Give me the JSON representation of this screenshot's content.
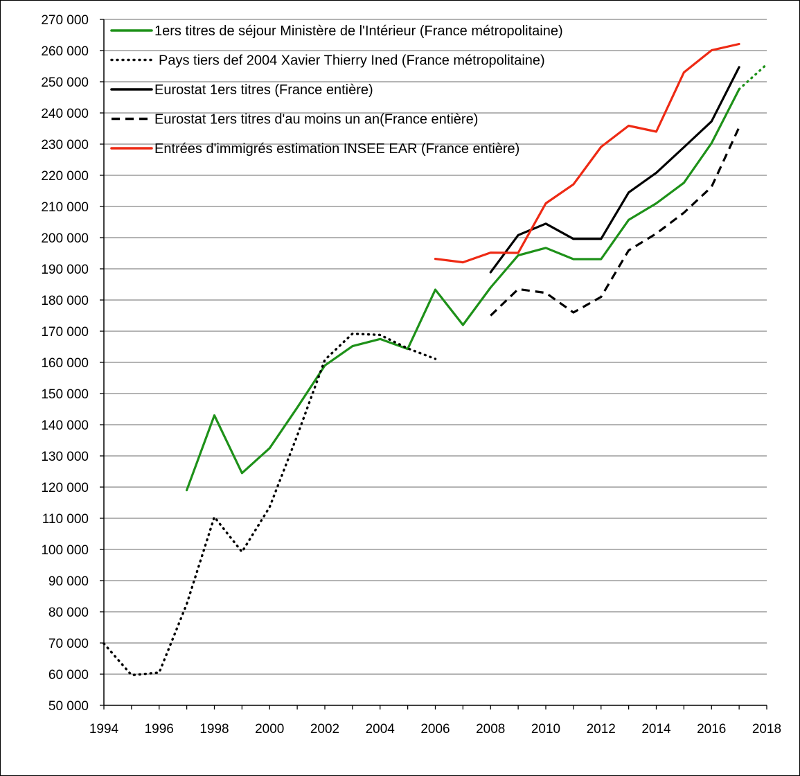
{
  "chart_data": {
    "type": "line",
    "title": "",
    "xlabel": "",
    "ylabel": "",
    "xlim": [
      1994,
      2018
    ],
    "ylim": [
      50000,
      270000
    ],
    "x_ticks": [
      1994,
      1996,
      1998,
      2000,
      2002,
      2004,
      2006,
      2008,
      2010,
      2012,
      2014,
      2016,
      2018
    ],
    "x_tick_labels": [
      "1994",
      "1996",
      "1998",
      "2000",
      "2002",
      "2004",
      "2006",
      "2008",
      "2010",
      "2012",
      "2014",
      "2016",
      "2018"
    ],
    "y_ticks": [
      50000,
      60000,
      70000,
      80000,
      90000,
      100000,
      110000,
      120000,
      130000,
      140000,
      150000,
      160000,
      170000,
      180000,
      190000,
      200000,
      210000,
      220000,
      230000,
      240000,
      250000,
      260000,
      270000
    ],
    "y_tick_labels": [
      "50 000",
      "60 000",
      "70 000",
      "80 000",
      "90 000",
      "100 000",
      "110 000",
      "120 000",
      "130 000",
      "140 000",
      "150 000",
      "160 000",
      "170 000",
      "180 000",
      "190 000",
      "200 000",
      "210 000",
      "220 000",
      "230 000",
      "240 000",
      "250 000",
      "260 000",
      "270 000"
    ],
    "grid": "horizontal",
    "legend_position": "top-left",
    "series": [
      {
        "name": "1ers titres de séjour Ministère  de l'Intérieur (France métropolitaine)",
        "color": "#1e9119",
        "style": "solid",
        "points": [
          [
            1997,
            119000
          ],
          [
            1998,
            143000
          ],
          [
            1999,
            124500
          ],
          [
            2000,
            132500
          ],
          [
            2001,
            145500
          ],
          [
            2002,
            159000
          ],
          [
            2003,
            165200
          ],
          [
            2004,
            167500
          ],
          [
            2005,
            164300
          ],
          [
            2006,
            183300
          ],
          [
            2007,
            172000
          ],
          [
            2008,
            184000
          ],
          [
            2009,
            194300
          ],
          [
            2010,
            196700
          ],
          [
            2011,
            193100
          ],
          [
            2012,
            193100
          ],
          [
            2013,
            205700
          ],
          [
            2014,
            211000
          ],
          [
            2015,
            217600
          ],
          [
            2016,
            230300
          ],
          [
            2017,
            247600
          ]
        ],
        "extension": {
          "style": "dotted",
          "points": [
            [
              2017,
              247600
            ],
            [
              2018,
              255600
            ]
          ]
        }
      },
      {
        "name": "Pays tiers def 2004 Xavier Thierry  Ined (France métropolitaine)",
        "color": "#000000",
        "style": "dotted",
        "points": [
          [
            1994,
            69800
          ],
          [
            1995,
            59700
          ],
          [
            1996,
            60500
          ],
          [
            1997,
            82500
          ],
          [
            1998,
            110400
          ],
          [
            1999,
            99200
          ],
          [
            2000,
            113600
          ],
          [
            2001,
            136500
          ],
          [
            2002,
            160800
          ],
          [
            2003,
            169200
          ],
          [
            2004,
            168800
          ],
          [
            2005,
            164500
          ],
          [
            2006,
            161100
          ]
        ]
      },
      {
        "name": "Eurostat 1ers titres (France entière)",
        "color": "#000000",
        "style": "solid",
        "points": [
          [
            2008,
            188900
          ],
          [
            2009,
            200800
          ],
          [
            2010,
            204500
          ],
          [
            2011,
            199600
          ],
          [
            2012,
            199600
          ],
          [
            2013,
            214500
          ],
          [
            2014,
            220800
          ],
          [
            2015,
            229000
          ],
          [
            2016,
            237300
          ],
          [
            2017,
            254700
          ]
        ]
      },
      {
        "name": "Eurostat 1ers titres d'au moins un an(France entière)",
        "color": "#000000",
        "style": "dashed",
        "points": [
          [
            2008,
            175000
          ],
          [
            2009,
            183500
          ],
          [
            2010,
            182300
          ],
          [
            2011,
            176000
          ],
          [
            2012,
            181000
          ],
          [
            2013,
            195900
          ],
          [
            2014,
            201300
          ],
          [
            2015,
            208000
          ],
          [
            2016,
            216300
          ],
          [
            2017,
            235400
          ]
        ]
      },
      {
        "name": "Entrées d'immigrés estimation INSEE EAR (France entière)",
        "color": "#ee2a14",
        "style": "solid",
        "points": [
          [
            2006,
            193200
          ],
          [
            2007,
            192100
          ],
          [
            2008,
            195200
          ],
          [
            2009,
            195100
          ],
          [
            2010,
            211000
          ],
          [
            2011,
            217100
          ],
          [
            2012,
            229100
          ],
          [
            2013,
            235900
          ],
          [
            2014,
            234000
          ],
          [
            2015,
            253000
          ],
          [
            2016,
            260100
          ],
          [
            2017,
            262100
          ]
        ]
      }
    ]
  }
}
